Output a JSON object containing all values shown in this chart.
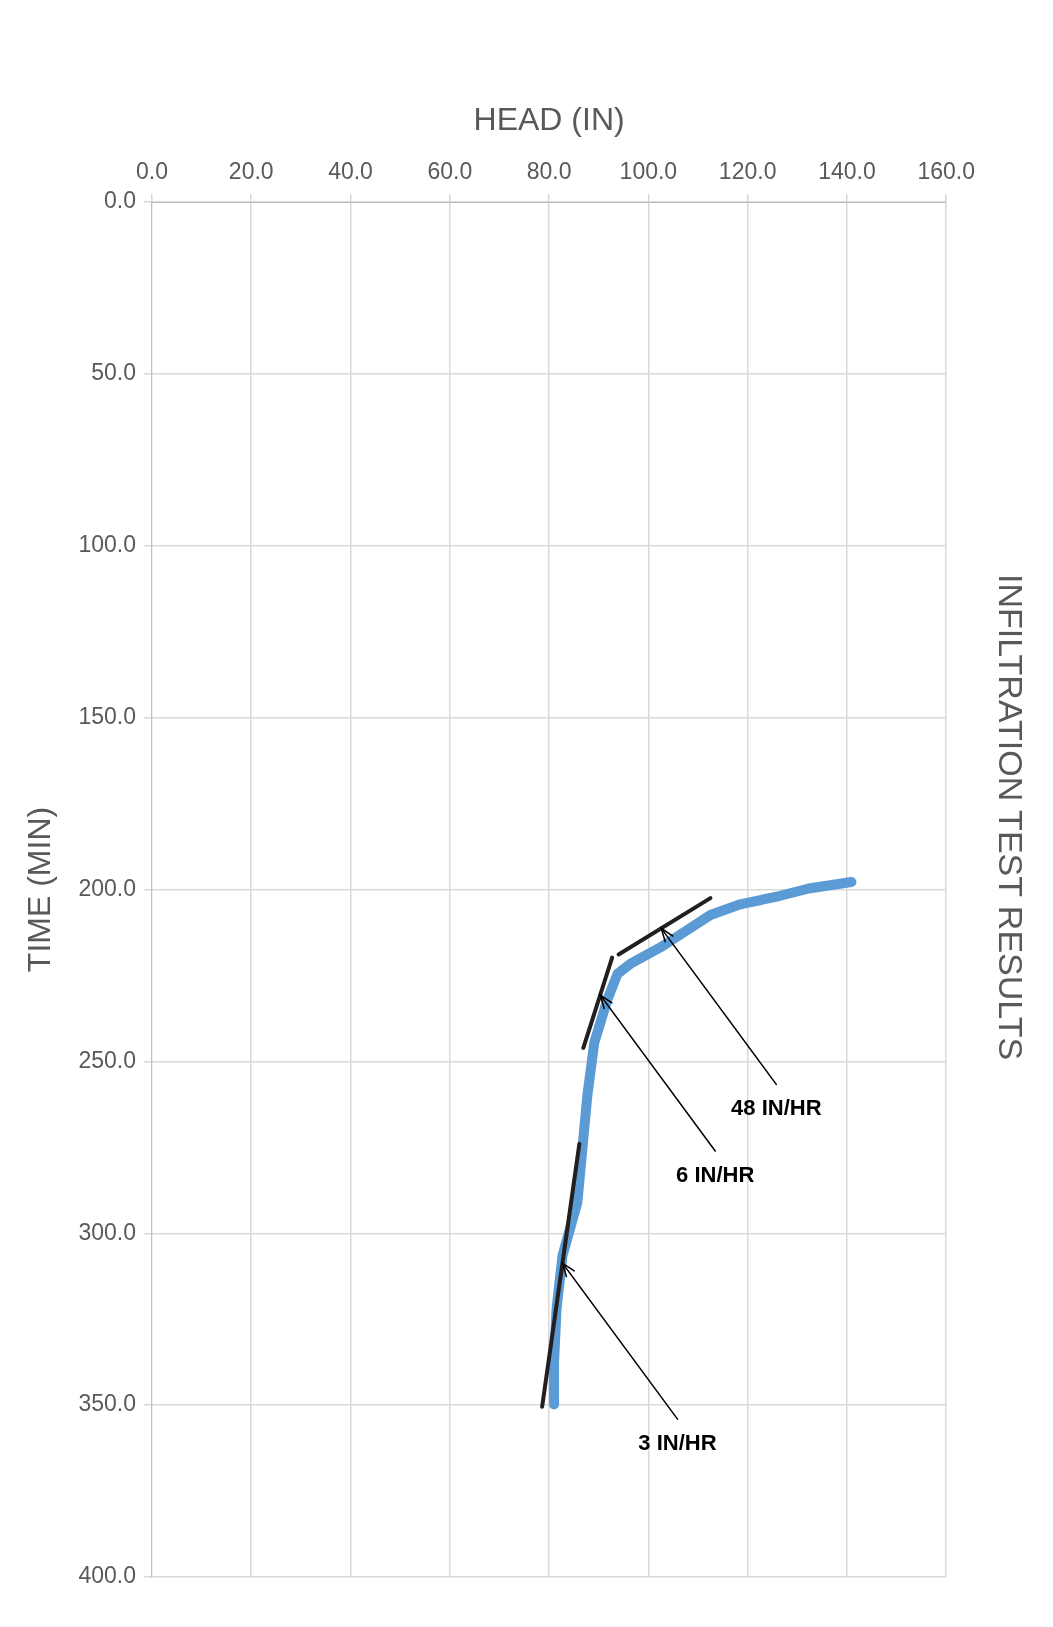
{
  "chart_data": {
    "type": "line",
    "title": "INFILTRATION TEST RESULTS",
    "xlabel": "HEAD (IN)",
    "ylabel": "TIME (MIN)",
    "xlim": [
      0,
      160
    ],
    "xticks": [
      {
        "value": 0,
        "label": "0.0"
      },
      {
        "value": 20,
        "label": "20.0"
      },
      {
        "value": 40,
        "label": "40.0"
      },
      {
        "value": 60,
        "label": "60.0"
      },
      {
        "value": 80,
        "label": "80.0"
      },
      {
        "value": 100,
        "label": "100.0"
      },
      {
        "value": 120,
        "label": "120.0"
      },
      {
        "value": 140,
        "label": "140.0"
      },
      {
        "value": 160,
        "label": "160.0"
      }
    ],
    "ylim": [
      400,
      0
    ],
    "yticks": [
      {
        "value": 0,
        "label": "0.0"
      },
      {
        "value": 50,
        "label": "50.0"
      },
      {
        "value": 100,
        "label": "100.0"
      },
      {
        "value": 150,
        "label": "150.0"
      },
      {
        "value": 200,
        "label": "200.0"
      },
      {
        "value": 250,
        "label": "250.0"
      },
      {
        "value": 300,
        "label": "300.0"
      },
      {
        "value": 350,
        "label": "350.0"
      },
      {
        "value": 400,
        "label": "400.0"
      }
    ],
    "grid": true,
    "legend": false,
    "marker": "none",
    "line_style": "solid",
    "series": [
      {
        "color": "#5b9bd5",
        "x": [
          140.9,
          132.3,
          126.4,
          118.5,
          112.5,
          107.5,
          102.6,
          96.6,
          93.8,
          91.7,
          89.1,
          87.7,
          86.7,
          85.7,
          82.7,
          81.5,
          81,
          81
        ],
        "values": [
          197.8,
          199.7,
          201.9,
          204.3,
          207.4,
          212.1,
          216.7,
          221.4,
          224.5,
          232.2,
          244.6,
          260,
          275.5,
          291,
          306.5,
          322,
          337.5,
          349.8
        ]
      },
      {
        "type": "line",
        "color": "#231f20",
        "x": [
          112.5,
          94
        ],
        "values": [
          202.5,
          218.9
        ]
      },
      {
        "type": "line",
        "color": "#231f20",
        "x": [
          92.7,
          86.9
        ],
        "values": [
          219.8,
          246.1
        ]
      },
      {
        "type": "line",
        "color": "#231f20",
        "x": [
          86.1,
          78.6
        ],
        "values": [
          274,
          350.5
        ]
      }
    ],
    "annotations": [
      {
        "text": "48 IN/HR",
        "x": 102.6,
        "y": 211.3
      },
      {
        "text": "6 IN/HR",
        "x": 90.3,
        "y": 230.7
      },
      {
        "text": "3 IN/HR",
        "x": 82.7,
        "y": 308.7
      }
    ]
  }
}
